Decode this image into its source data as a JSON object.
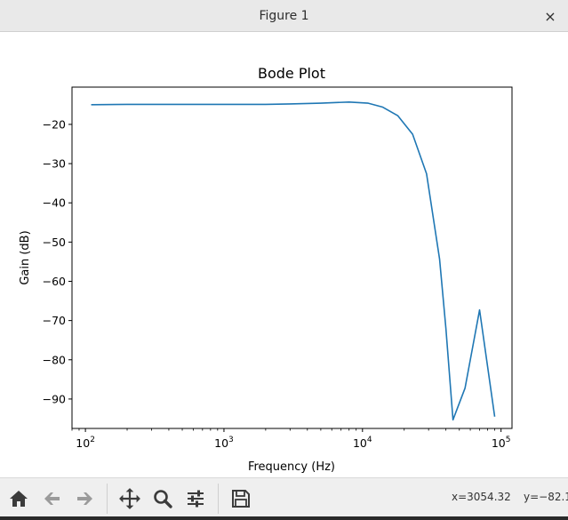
{
  "window": {
    "title": "Figure 1",
    "close_glyph": "×"
  },
  "toolbar": {
    "buttons": [
      {
        "name": "home-icon",
        "label": "Home"
      },
      {
        "name": "back-arrow-icon",
        "label": "Back"
      },
      {
        "name": "forward-arrow-icon",
        "label": "Forward"
      },
      {
        "name": "pan-icon",
        "label": "Pan"
      },
      {
        "name": "zoom-icon",
        "label": "Zoom"
      },
      {
        "name": "configure-subplots-icon",
        "label": "Subplots"
      },
      {
        "name": "save-icon",
        "label": "Save"
      }
    ],
    "coord_x": "x=3054.32",
    "coord_y": "y=−82.1"
  },
  "colors": {
    "line": "#1f77b4",
    "titlebar": "#e9e9e9",
    "toolbar": "#efefef",
    "icon": "#3b3b3b",
    "icon_disabled": "#9a9a9a"
  },
  "chart_data": {
    "type": "line",
    "title": "Bode Plot",
    "xlabel": "Frequency (Hz)",
    "ylabel": "Gain (dB)",
    "xscale": "log",
    "xlim": [
      80,
      120000
    ],
    "ylim": [
      -97.5,
      -10.5
    ],
    "xticks": [
      {
        "value": 100,
        "base": "10",
        "exp": "2"
      },
      {
        "value": 1000,
        "base": "10",
        "exp": "3"
      },
      {
        "value": 10000,
        "base": "10",
        "exp": "4"
      },
      {
        "value": 100000,
        "base": "10",
        "exp": "5"
      }
    ],
    "yticks": [
      {
        "value": -20,
        "label": "−20"
      },
      {
        "value": -30,
        "label": "−30"
      },
      {
        "value": -40,
        "label": "−40"
      },
      {
        "value": -50,
        "label": "−50"
      },
      {
        "value": -60,
        "label": "−60"
      },
      {
        "value": -70,
        "label": "−70"
      },
      {
        "value": -80,
        "label": "−80"
      },
      {
        "value": -90,
        "label": "−90"
      }
    ],
    "grid": false,
    "series": [
      {
        "x": [
          110,
          200,
          500,
          1000,
          2000,
          3000,
          5000,
          8000,
          11000,
          14000,
          18000,
          23000,
          29000,
          36000,
          40000,
          45000,
          55000,
          70000,
          90000
        ],
        "y": [
          -15.0,
          -14.9,
          -14.9,
          -14.9,
          -14.9,
          -14.8,
          -14.6,
          -14.3,
          -14.6,
          -15.6,
          -17.8,
          -22.5,
          -32.6,
          -54.3,
          -72.0,
          -95.3,
          -87.2,
          -67.3,
          -94.5
        ]
      }
    ]
  }
}
